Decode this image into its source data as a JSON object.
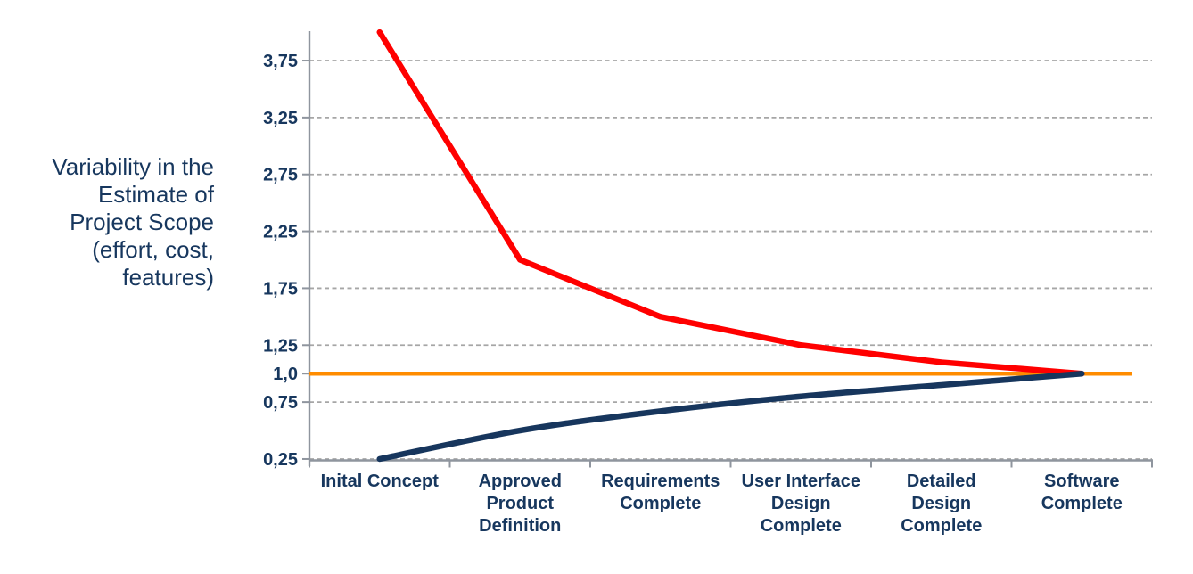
{
  "page": {
    "background": "#FFFFFF"
  },
  "y_axis_title": {
    "text": "Variability in the Estimate of Project Scope (effort, cost, features)",
    "lines": [
      "Variability in the",
      "Estimate of",
      "Project Scope",
      "(effort, cost,",
      "features)"
    ]
  },
  "colors": {
    "text": "#17375E",
    "grid": "#A6A6A6",
    "axis": "#8F959E",
    "upper_line": "#FF0000",
    "baseline_line": "#FF8C00",
    "lower_line": "#17365D"
  },
  "chart_data": {
    "type": "line",
    "title": "",
    "xlabel": "",
    "ylabel": "Variability in the Estimate of Project Scope (effort, cost, features)",
    "ylim": [
      0.25,
      4.0
    ],
    "grid": "dashed-horizontal",
    "legend": "none",
    "decimal_separator": ",",
    "categories": [
      "Inital Concept",
      "Approved Product Definition",
      "Requirements Complete",
      "User Interface Design Complete",
      "Detailed Design Complete",
      "Software Complete"
    ],
    "category_label_lines": [
      [
        "Inital Concept"
      ],
      [
        "Approved",
        "Product",
        "Definition"
      ],
      [
        "Requirements",
        "Complete"
      ],
      [
        "User Interface",
        "Design",
        "Complete"
      ],
      [
        "Detailed",
        "Design",
        "Complete"
      ],
      [
        "Software",
        "Complete"
      ]
    ],
    "y_ticks": [
      {
        "value": 3.75,
        "label": "3,75"
      },
      {
        "value": 3.25,
        "label": "3,25"
      },
      {
        "value": 2.75,
        "label": "2,75"
      },
      {
        "value": 2.25,
        "label": "2,25"
      },
      {
        "value": 1.75,
        "label": "1,75"
      },
      {
        "value": 1.25,
        "label": "1,25"
      },
      {
        "value": 1.0,
        "label": "1,0"
      },
      {
        "value": 0.75,
        "label": "0,75"
      },
      {
        "value": 0.25,
        "label": "0,25"
      }
    ],
    "gridline_values": [
      3.75,
      3.25,
      2.75,
      2.25,
      1.75,
      1.25,
      0.75,
      0.25
    ],
    "series": [
      {
        "name": "upper-estimate-bound",
        "color": "#FF0000",
        "width": 6.5,
        "smooth": false,
        "values": [
          4.0,
          2.0,
          1.5,
          1.25,
          1.1,
          1.0
        ]
      },
      {
        "name": "baseline-target",
        "color": "#FF8C00",
        "width": 4.5,
        "smooth": false,
        "full_width": true,
        "values": [
          1.0,
          1.0,
          1.0,
          1.0,
          1.0,
          1.0
        ]
      },
      {
        "name": "lower-estimate-bound",
        "color": "#17365D",
        "width": 6.5,
        "smooth": true,
        "values": [
          0.25,
          0.5,
          0.67,
          0.8,
          0.9,
          1.0
        ]
      }
    ]
  }
}
